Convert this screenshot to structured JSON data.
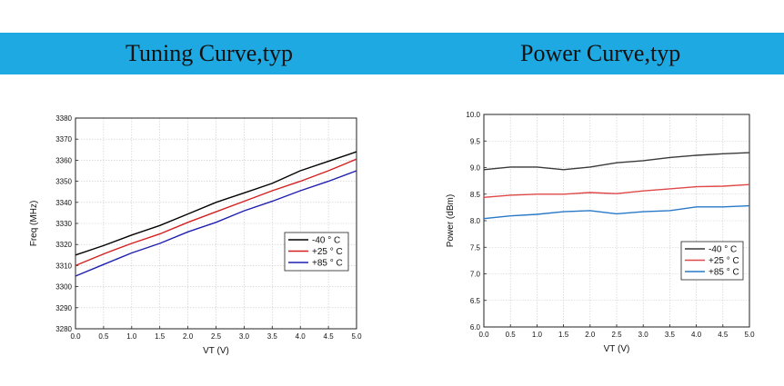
{
  "header": {
    "left_title": "Tuning Curve,typ",
    "right_title": "Power Curve,typ",
    "banner_color": "#1ea9e3"
  },
  "chart_data": [
    {
      "type": "line",
      "xlabel": "VT (V)",
      "ylabel": "Freq (MHz)",
      "xlim": [
        0,
        5
      ],
      "ylim": [
        3280,
        3380
      ],
      "xticks": [
        "0.0",
        "0.5",
        "1.0",
        "1.5",
        "2.0",
        "2.5",
        "3.0",
        "3.5",
        "4.0",
        "4.5",
        "5.0"
      ],
      "yticks": [
        "3280",
        "3290",
        "3300",
        "3310",
        "3320",
        "3330",
        "3340",
        "3350",
        "3360",
        "3370",
        "3380"
      ],
      "grid": true,
      "legend_position": "lower-right",
      "x": [
        0.0,
        0.5,
        1.0,
        1.5,
        2.0,
        2.5,
        3.0,
        3.5,
        4.0,
        4.5,
        5.0
      ],
      "series": [
        {
          "name": "-40 ° C",
          "color": "#000000",
          "values": [
            3315,
            3319.5,
            3324.5,
            3329,
            3334.5,
            3340,
            3344.5,
            3349,
            3355,
            3359.5,
            3364
          ]
        },
        {
          "name": "+25 ° C",
          "color": "#d42020",
          "values": [
            3310,
            3315.5,
            3320.5,
            3325,
            3330.5,
            3335.5,
            3340.5,
            3345.5,
            3350,
            3355,
            3360.5
          ]
        },
        {
          "name": "+85 ° C",
          "color": "#1f1fb0",
          "values": [
            3305,
            3310.5,
            3316,
            3320.5,
            3326,
            3330.5,
            3336,
            3340.5,
            3345.5,
            3350,
            3355
          ]
        }
      ]
    },
    {
      "type": "line",
      "xlabel": "VT (V)",
      "ylabel": "Power (dBm)",
      "xlim": [
        0,
        5
      ],
      "ylim": [
        6.0,
        10.0
      ],
      "xticks": [
        "0.0",
        "0.5",
        "1.0",
        "1.5",
        "2.0",
        "2.5",
        "3.0",
        "3.5",
        "4.0",
        "4.5",
        "5.0"
      ],
      "yticks": [
        "6.0",
        "6.5",
        "7.0",
        "7.5",
        "8.0",
        "8.5",
        "9.0",
        "9.5",
        "10.0"
      ],
      "grid": true,
      "legend_position": "lower-right",
      "x": [
        0.0,
        0.5,
        1.0,
        1.5,
        2.0,
        2.5,
        3.0,
        3.5,
        4.0,
        4.5,
        5.0
      ],
      "series": [
        {
          "name": "-40 ° C",
          "color": "#3a3a3a",
          "values": [
            8.96,
            9.01,
            9.01,
            8.96,
            9.01,
            9.09,
            9.13,
            9.19,
            9.23,
            9.26,
            9.28
          ]
        },
        {
          "name": "+25 ° C",
          "color": "#e04848",
          "values": [
            8.44,
            8.48,
            8.5,
            8.5,
            8.53,
            8.51,
            8.56,
            8.6,
            8.64,
            8.65,
            8.68
          ]
        },
        {
          "name": "+85 ° C",
          "color": "#2878c8",
          "values": [
            8.04,
            8.09,
            8.12,
            8.17,
            8.19,
            8.13,
            8.17,
            8.19,
            8.26,
            8.26,
            8.28
          ]
        }
      ]
    }
  ]
}
